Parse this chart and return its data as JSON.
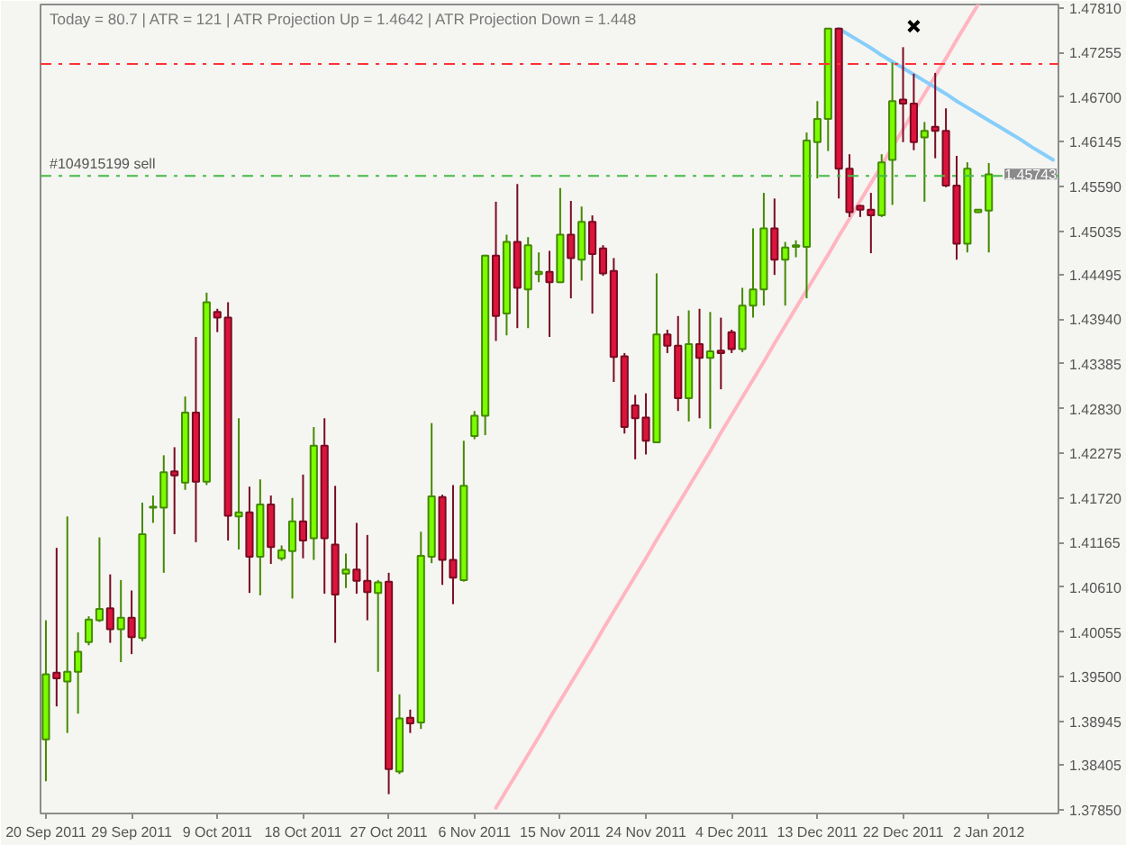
{
  "chart_data": {
    "type": "candlestick",
    "categories": [
      "20 Sep 2011",
      null,
      null,
      null,
      null,
      null,
      null,
      null,
      "29 Sep 2011",
      null,
      null,
      null,
      null,
      null,
      null,
      null,
      "9 Oct 2011",
      null,
      null,
      null,
      null,
      null,
      null,
      null,
      "18 Oct 2011",
      null,
      null,
      null,
      null,
      null,
      null,
      null,
      "27 Oct 2011",
      null,
      null,
      null,
      null,
      null,
      null,
      null,
      "6 Nov 2011",
      null,
      null,
      null,
      null,
      null,
      null,
      null,
      "15 Nov 2011",
      null,
      null,
      null,
      null,
      null,
      null,
      null,
      "24 Nov 2011",
      null,
      null,
      null,
      null,
      null,
      null,
      null,
      "4 Dec 2011",
      null,
      null,
      null,
      null,
      null,
      null,
      null,
      "13 Dec 2011",
      null,
      null,
      null,
      null,
      null,
      null,
      null,
      "22 Dec 2011",
      null,
      null,
      null,
      null,
      null,
      null,
      null,
      "2 Jan 2012",
      null,
      null,
      null,
      null,
      null,
      null
    ],
    "ohlc": [
      [
        1.3872,
        1.402,
        1.382,
        1.3953
      ],
      [
        1.3955,
        1.411,
        1.3913,
        1.3948
      ],
      [
        1.3944,
        1.4149,
        1.388,
        1.3956
      ],
      [
        1.3956,
        1.4005,
        1.3904,
        1.3981
      ],
      [
        1.3993,
        1.4025,
        1.3989,
        1.4021
      ],
      [
        1.402,
        1.4123,
        1.4018,
        1.4034
      ],
      [
        1.4035,
        1.4077,
        1.3992,
        1.4009
      ],
      [
        1.4009,
        1.407,
        1.3968,
        1.4023
      ],
      [
        1.4023,
        1.4057,
        1.3978,
        1.3999
      ],
      [
        1.3998,
        1.4166,
        1.3994,
        1.4127
      ],
      [
        1.416,
        1.4175,
        1.4141,
        1.4161
      ],
      [
        1.416,
        1.4225,
        1.4079,
        1.4204
      ],
      [
        1.4205,
        1.4235,
        1.4127,
        1.42
      ],
      [
        1.4191,
        1.4298,
        1.4182,
        1.4278
      ],
      [
        1.4278,
        1.4372,
        1.4117,
        1.4192
      ],
      [
        1.4192,
        1.4427,
        1.4188,
        1.4415
      ],
      [
        1.4403,
        1.4407,
        1.4378,
        1.4396
      ],
      [
        1.4396,
        1.4415,
        1.4119,
        1.415
      ],
      [
        1.4149,
        1.4271,
        1.4108,
        1.4154
      ],
      [
        1.4154,
        1.4186,
        1.4054,
        1.4099
      ],
      [
        1.4099,
        1.4195,
        1.4051,
        1.4164
      ],
      [
        1.4164,
        1.4175,
        1.409,
        1.4111
      ],
      [
        1.4097,
        1.4113,
        1.4094,
        1.4107
      ],
      [
        1.4106,
        1.4172,
        1.4047,
        1.4143
      ],
      [
        1.4143,
        1.4201,
        1.4097,
        1.4119
      ],
      [
        1.4122,
        1.426,
        1.4095,
        1.4237
      ],
      [
        1.4237,
        1.4271,
        1.4053,
        1.4122
      ],
      [
        1.4114,
        1.4187,
        1.3992,
        1.4052
      ],
      [
        1.4078,
        1.4103,
        1.406,
        1.4083
      ],
      [
        1.4083,
        1.4141,
        1.4053,
        1.4069
      ],
      [
        1.4069,
        1.4126,
        1.402,
        1.4055
      ],
      [
        1.4054,
        1.407,
        1.3956,
        1.4067
      ],
      [
        1.4068,
        1.4079,
        1.3804,
        1.3835
      ],
      [
        1.3832,
        1.3928,
        1.3829,
        1.3898
      ],
      [
        1.3899,
        1.3909,
        1.388,
        1.3892
      ],
      [
        1.3893,
        1.413,
        1.3885,
        1.41
      ],
      [
        1.4099,
        1.4265,
        1.4091,
        1.4174
      ],
      [
        1.4173,
        1.4176,
        1.4064,
        1.4095
      ],
      [
        1.4095,
        1.4188,
        1.404,
        1.4073
      ],
      [
        1.407,
        1.4243,
        1.4068,
        1.4187
      ],
      [
        1.4249,
        1.428,
        1.4245,
        1.4274
      ],
      [
        1.4274,
        1.4474,
        1.425,
        1.4473
      ],
      [
        1.4473,
        1.454,
        1.4367,
        1.4398
      ],
      [
        1.4401,
        1.4499,
        1.4374,
        1.449
      ],
      [
        1.449,
        1.4562,
        1.4383,
        1.4433
      ],
      [
        1.4431,
        1.4496,
        1.4383,
        1.4486
      ],
      [
        1.445,
        1.4477,
        1.444,
        1.4453
      ],
      [
        1.4453,
        1.4479,
        1.4372,
        1.444
      ],
      [
        1.444,
        1.4557,
        1.4439,
        1.4499
      ],
      [
        1.4499,
        1.4541,
        1.442,
        1.447
      ],
      [
        1.4468,
        1.4534,
        1.4442,
        1.4515
      ],
      [
        1.4515,
        1.4523,
        1.4401,
        1.4475
      ],
      [
        1.4482,
        1.4486,
        1.4448,
        1.4451
      ],
      [
        1.4454,
        1.447,
        1.4316,
        1.4347
      ],
      [
        1.4348,
        1.4352,
        1.4252,
        1.426
      ],
      [
        1.4287,
        1.43,
        1.422,
        1.4271
      ],
      [
        1.4272,
        1.4302,
        1.4226,
        1.4243
      ],
      [
        1.4241,
        1.4451,
        1.424,
        1.4375
      ],
      [
        1.4375,
        1.4381,
        1.4352,
        1.4361
      ],
      [
        1.4361,
        1.4398,
        1.428,
        1.4296
      ],
      [
        1.4296,
        1.4405,
        1.4267,
        1.4363
      ],
      [
        1.4363,
        1.4407,
        1.4271,
        1.4346
      ],
      [
        1.4346,
        1.4403,
        1.4258,
        1.4354
      ],
      [
        1.4355,
        1.4396,
        1.4307,
        1.4352
      ],
      [
        1.4378,
        1.4381,
        1.4352,
        1.4357
      ],
      [
        1.4357,
        1.4433,
        1.4353,
        1.4411
      ],
      [
        1.4411,
        1.4507,
        1.4396,
        1.4431
      ],
      [
        1.4431,
        1.4551,
        1.4411,
        1.4507
      ],
      [
        1.4507,
        1.4544,
        1.4449,
        1.4468
      ],
      [
        1.4468,
        1.449,
        1.4411,
        1.4483
      ],
      [
        1.4484,
        1.4492,
        1.4471,
        1.4486
      ],
      [
        1.4484,
        1.4626,
        1.442,
        1.4616
      ],
      [
        1.4614,
        1.4665,
        1.4569,
        1.4643
      ],
      [
        1.4643,
        1.4755,
        1.4603,
        1.4755
      ],
      [
        1.4755,
        1.4755,
        1.4544,
        1.4581
      ],
      [
        1.4581,
        1.4599,
        1.4521,
        1.4527
      ],
      [
        1.4535,
        1.4536,
        1.4521,
        1.453
      ],
      [
        1.453,
        1.4551,
        1.4476,
        1.4523
      ],
      [
        1.4523,
        1.4599,
        1.4521,
        1.4589
      ],
      [
        1.4592,
        1.4713,
        1.4536,
        1.4665
      ],
      [
        1.4667,
        1.4732,
        1.4614,
        1.4662
      ],
      [
        1.4662,
        1.4699,
        1.4604,
        1.4614
      ],
      [
        1.462,
        1.4639,
        1.454,
        1.4628
      ],
      [
        1.4633,
        1.47,
        1.4594,
        1.4628
      ],
      [
        1.4628,
        1.4656,
        1.4558,
        1.456
      ],
      [
        1.456,
        1.4597,
        1.4468,
        1.4488
      ],
      [
        1.4488,
        1.4589,
        1.4477,
        1.4581
      ],
      [
        1.4527,
        1.4531,
        1.4526,
        1.453
      ],
      [
        1.4529,
        1.4588,
        1.4477,
        1.4574
      ],
      null,
      null,
      null,
      null,
      null,
      null
    ],
    "colors": [
      "#7cfc00",
      "#dc143c",
      "#7cfc00",
      "#7cfc00",
      "#7cfc00",
      "#7cfc00",
      "#dc143c",
      "#7cfc00",
      "#dc143c",
      "#7cfc00",
      "#7cfc00",
      "#7cfc00",
      "#dc143c",
      "#7cfc00",
      "#dc143c",
      "#7cfc00",
      "#dc143c",
      "#dc143c",
      "#7cfc00",
      "#dc143c",
      "#7cfc00",
      "#dc143c",
      "#7cfc00",
      "#7cfc00",
      "#dc143c",
      "#7cfc00",
      "#dc143c",
      "#dc143c",
      "#7cfc00",
      "#dc143c",
      "#dc143c",
      "#7cfc00",
      "#dc143c",
      "#7cfc00",
      "#dc143c",
      "#7cfc00",
      "#7cfc00",
      "#dc143c",
      "#dc143c",
      "#7cfc00",
      "#7cfc00",
      "#7cfc00",
      "#dc143c",
      "#7cfc00",
      "#dc143c",
      "#7cfc00",
      "#7cfc00",
      "#dc143c",
      "#7cfc00",
      "#dc143c",
      "#7cfc00",
      "#dc143c",
      "#dc143c",
      "#dc143c",
      "#dc143c",
      "#dc143c",
      "#dc143c",
      "#7cfc00",
      "#dc143c",
      "#dc143c",
      "#7cfc00",
      "#dc143c",
      "#7cfc00",
      "#dc143c",
      "#dc143c",
      "#7cfc00",
      "#7cfc00",
      "#7cfc00",
      "#dc143c",
      "#7cfc00",
      "#7cfc00",
      "#7cfc00",
      "#7cfc00",
      "#7cfc00",
      "#dc143c",
      "#dc143c",
      "#dc143c",
      "#dc143c",
      "#7cfc00",
      "#7cfc00",
      "#dc143c",
      "#dc143c",
      "#7cfc00",
      "#dc143c",
      "#dc143c",
      "#dc143c",
      "#7cfc00",
      "#7cfc00",
      "#7cfc00",
      null,
      null,
      null,
      null,
      null,
      null
    ],
    "series": [
      {
        "type": "line",
        "color": "#ffb6c1",
        "values": [
          null,
          null,
          null,
          null,
          null,
          null,
          null,
          null,
          null,
          null,
          null,
          null,
          null,
          null,
          null,
          null,
          null,
          null,
          null,
          null,
          null,
          null,
          null,
          null,
          null,
          null,
          null,
          null,
          null,
          null,
          null,
          null,
          null,
          null,
          null,
          null,
          null,
          null,
          null,
          null,
          null,
          null,
          1.3787,
          1.3809,
          1.3831,
          1.3853,
          1.3875,
          1.3898,
          1.392,
          1.3942,
          1.3964,
          1.3986,
          1.4009,
          1.4031,
          1.4053,
          1.4075,
          1.4097,
          1.412,
          1.4142,
          1.4164,
          1.4186,
          1.4208,
          1.423,
          1.4253,
          1.4275,
          1.4297,
          1.4319,
          1.4341,
          1.4364,
          1.4386,
          1.4408,
          1.443,
          1.4452,
          1.4474,
          1.4497,
          1.4519,
          1.4541,
          1.4563,
          1.4585,
          1.4608,
          1.463,
          1.4652,
          1.4674,
          1.4696,
          1.4718,
          1.4741,
          1.4763,
          1.4785,
          null,
          null,
          null,
          null,
          null,
          null,
          null
        ]
      },
      {
        "type": "line",
        "color": "#87cefa",
        "values": [
          null,
          null,
          null,
          null,
          null,
          null,
          null,
          null,
          null,
          null,
          null,
          null,
          null,
          null,
          null,
          null,
          null,
          null,
          null,
          null,
          null,
          null,
          null,
          null,
          null,
          null,
          null,
          null,
          null,
          null,
          null,
          null,
          null,
          null,
          null,
          null,
          null,
          null,
          null,
          null,
          null,
          null,
          null,
          null,
          null,
          null,
          null,
          null,
          null,
          null,
          null,
          null,
          null,
          null,
          null,
          null,
          null,
          null,
          null,
          null,
          null,
          null,
          null,
          null,
          null,
          null,
          null,
          null,
          null,
          null,
          null,
          null,
          null,
          null,
          1.4755,
          1.4747,
          1.4739,
          1.4731,
          1.4722,
          1.4714,
          1.4706,
          1.4698,
          1.469,
          1.4682,
          1.4674,
          1.4665,
          1.4657,
          1.4649,
          1.4641,
          1.4633,
          1.4625,
          1.4617,
          1.4608,
          1.46,
          1.4592
        ]
      },
      {
        "type": "scatter",
        "marker": "cross",
        "color": "#000000",
        "values": [
          null,
          null,
          null,
          null,
          null,
          null,
          null,
          null,
          null,
          null,
          null,
          null,
          null,
          null,
          null,
          null,
          null,
          null,
          null,
          null,
          null,
          null,
          null,
          null,
          null,
          null,
          null,
          null,
          null,
          null,
          null,
          null,
          null,
          null,
          null,
          null,
          null,
          null,
          null,
          null,
          null,
          null,
          null,
          null,
          null,
          null,
          null,
          null,
          null,
          null,
          null,
          null,
          null,
          null,
          null,
          null,
          null,
          null,
          null,
          null,
          null,
          null,
          null,
          null,
          null,
          null,
          null,
          null,
          null,
          null,
          null,
          null,
          null,
          null,
          null,
          null,
          null,
          null,
          null,
          null,
          null,
          1.4758,
          null,
          null,
          null,
          null,
          null,
          null,
          null,
          null,
          null,
          null,
          null,
          null,
          null
        ]
      }
    ],
    "ref_lines": [
      {
        "axis": "y",
        "value": 1.4711,
        "color": "#ff3333",
        "line_style": "dashdot"
      },
      {
        "axis": "y",
        "value": 1.4572,
        "label": "#104915199 sell",
        "color": "#44bb44",
        "line_style": "dashdot"
      }
    ],
    "annotations": [
      "Today = 80.7  |  ATR = 121  |  ATR Projection Up = 1.4642  |  ATR Projection Down = 1.448",
      {
        "text": "1.45743",
        "y": 1.45743
      }
    ],
    "ylim": [
      1.378,
      1.4785
    ],
    "yticks": [
      {
        "value": 1.4781,
        "label": "1.47810"
      },
      1.47255,
      {
        "value": 1.467,
        "label": "1.46700"
      },
      1.46145,
      {
        "value": 1.4559,
        "label": "1.45590"
      },
      1.45035,
      1.44495,
      {
        "value": 1.4394,
        "label": "1.43940"
      },
      1.43385,
      {
        "value": 1.4283,
        "label": "1.42830"
      },
      1.42275,
      {
        "value": 1.4172,
        "label": "1.41720"
      },
      1.41165,
      {
        "value": 1.4061,
        "label": "1.40610"
      },
      1.40055,
      {
        "value": 1.395,
        "label": "1.39500"
      },
      1.38945,
      1.38405,
      {
        "value": 1.3785,
        "label": "1.37850"
      }
    ]
  }
}
